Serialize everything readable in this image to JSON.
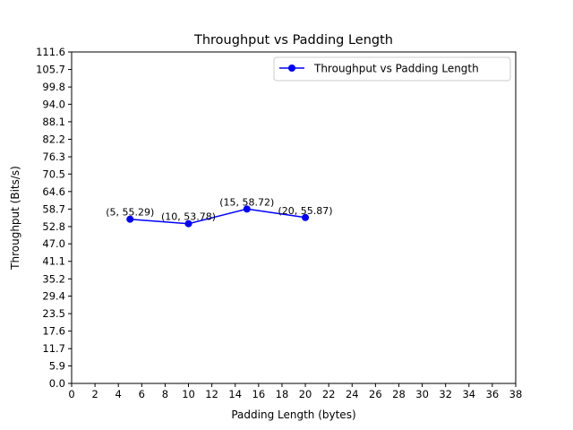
{
  "chart_data": {
    "type": "line",
    "title": "Throughput vs Padding Length",
    "xlabel": "Padding Length (bytes)",
    "ylabel": "Throughput (Bits/s)",
    "xlim": [
      0,
      38
    ],
    "ylim": [
      0,
      111.6
    ],
    "x_ticks": [
      0,
      2,
      4,
      6,
      8,
      10,
      12,
      14,
      16,
      18,
      20,
      22,
      24,
      26,
      28,
      30,
      32,
      34,
      36,
      38
    ],
    "y_ticks": [
      "0.0",
      "5.9",
      "11.7",
      "17.6",
      "23.5",
      "29.4",
      "35.2",
      "41.1",
      "47.0",
      "52.8",
      "58.7",
      "64.6",
      "70.5",
      "76.3",
      "82.2",
      "88.1",
      "94.0",
      "99.8",
      "105.7",
      "111.6"
    ],
    "grid": false,
    "legend_position": "top-right",
    "series": [
      {
        "name": "Throughput vs Padding Length",
        "color": "#0000ff",
        "marker": "circle",
        "x": [
          5,
          10,
          15,
          20
        ],
        "y": [
          55.29,
          53.78,
          58.72,
          55.87
        ],
        "labels": [
          "(5, 55.29)",
          "(10, 53.78)",
          "(15, 58.72)",
          "(20, 55.87)"
        ]
      }
    ]
  }
}
